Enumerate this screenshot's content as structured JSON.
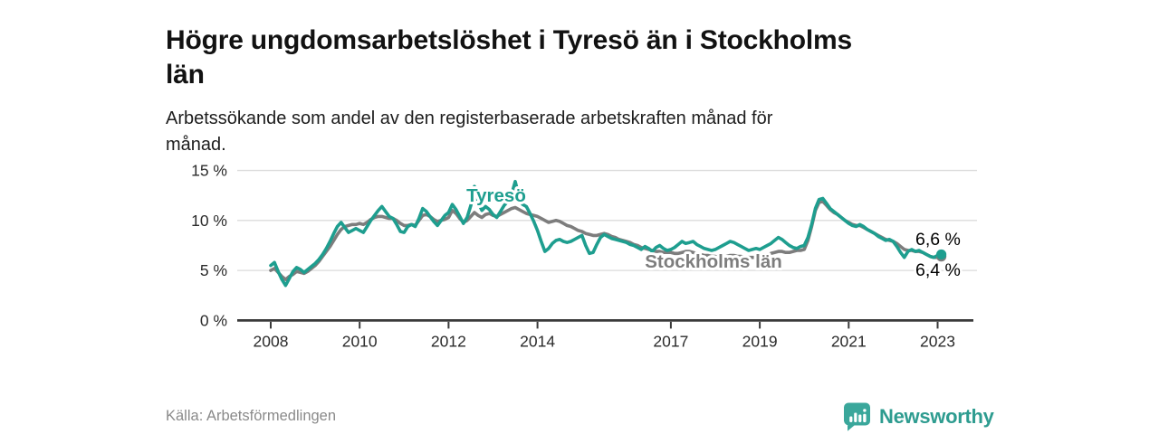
{
  "header": {
    "title_lines": [
      "Högre ungdomsarbetslöshet i Tyresö än i Stockholms",
      "län"
    ],
    "subtitle_lines": [
      "Arbetssökande som andel av den registerbaserade arbetskraften månad för",
      "månad."
    ]
  },
  "footer": {
    "source": "Källa: Arbetsförmedlingen",
    "brand_name": "Newsworthy",
    "brand_icon": "speech-bubble-bar-chart-icon",
    "brand_color": "#3AA79B"
  },
  "chart_data": {
    "type": "line",
    "title": "Högre ungdomsarbetslöshet i Tyresö än i Stockholms län",
    "subtitle": "Arbetssökande som andel av den registerbaserade arbetskraften månad för månad.",
    "x_unit": "month",
    "x_start": "2008-01",
    "x_end": "2023-02",
    "grid": "horizontal",
    "ylim": [
      0,
      15.5
    ],
    "y_ticks": [
      {
        "value": 0,
        "label": "0 %"
      },
      {
        "value": 5,
        "label": "5 %"
      },
      {
        "value": 10,
        "label": "10 %"
      },
      {
        "value": 15,
        "label": "15 %"
      }
    ],
    "x_ticks": [
      {
        "year": 2008,
        "label": "2008"
      },
      {
        "year": 2010,
        "label": "2010"
      },
      {
        "year": 2012,
        "label": "2012"
      },
      {
        "year": 2014,
        "label": "2014"
      },
      {
        "year": 2017,
        "label": "2017"
      },
      {
        "year": 2019,
        "label": "2019"
      },
      {
        "year": 2021,
        "label": "2021"
      },
      {
        "year": 2023,
        "label": "2023"
      }
    ],
    "series": [
      {
        "name": "Stockholms län",
        "color": "#7D7D7D",
        "end_label": "6,4 %",
        "end_marker": true,
        "values": [
          5.0,
          5.2,
          4.8,
          4.4,
          4.1,
          4.4,
          4.6,
          4.9,
          4.8,
          4.7,
          4.9,
          5.2,
          5.5,
          5.9,
          6.4,
          6.9,
          7.4,
          8.0,
          8.6,
          9.1,
          9.4,
          9.5,
          9.6,
          9.6,
          9.7,
          9.6,
          9.8,
          10.1,
          10.3,
          10.4,
          10.4,
          10.3,
          10.2,
          10.2,
          10.0,
          9.7,
          9.5,
          9.5,
          9.6,
          9.5,
          10.0,
          10.5,
          10.6,
          10.4,
          10.1,
          9.9,
          10.0,
          10.1,
          10.3,
          11.0,
          10.7,
          10.2,
          9.8,
          10.0,
          10.4,
          10.8,
          10.5,
          10.3,
          10.6,
          10.7,
          10.5,
          10.4,
          10.6,
          10.8,
          11.0,
          11.2,
          11.3,
          11.1,
          10.9,
          10.7,
          10.6,
          10.5,
          10.4,
          10.2,
          10.0,
          9.8,
          9.9,
          10.0,
          9.9,
          9.7,
          9.5,
          9.4,
          9.2,
          9.0,
          8.9,
          8.7,
          8.6,
          8.5,
          8.5,
          8.6,
          8.7,
          8.6,
          8.4,
          8.3,
          8.1,
          8.0,
          7.9,
          7.8,
          7.6,
          7.5,
          7.3,
          7.2,
          7.1,
          7.0,
          6.9,
          6.9,
          6.8,
          6.8,
          6.8,
          6.7,
          6.7,
          6.8,
          6.9,
          6.9,
          6.8,
          6.7,
          6.6,
          6.5,
          6.5,
          6.4,
          6.4,
          6.3,
          6.3,
          6.4,
          6.5,
          6.5,
          6.4,
          6.4,
          6.3,
          6.3,
          6.3,
          6.3,
          6.3,
          6.4,
          6.5,
          6.7,
          6.8,
          6.9,
          6.9,
          6.8,
          6.8,
          6.9,
          7.0,
          7.0,
          7.1,
          8.0,
          9.4,
          11.0,
          11.8,
          11.9,
          11.5,
          11.1,
          10.8,
          10.6,
          10.3,
          10.0,
          9.8,
          9.6,
          9.5,
          9.5,
          9.3,
          9.1,
          8.9,
          8.7,
          8.5,
          8.3,
          8.1,
          8.0,
          7.9,
          7.7,
          7.4,
          7.1,
          7.0,
          7.0,
          6.9,
          6.9,
          6.8,
          6.6,
          6.4,
          6.3,
          6.3,
          6.4
        ]
      },
      {
        "name": "Tyresö",
        "color": "#1E9E8F",
        "end_label": "6,6 %",
        "end_marker": true,
        "values": [
          5.5,
          5.8,
          4.9,
          4.1,
          3.5,
          4.2,
          4.9,
          5.3,
          5.1,
          4.8,
          5.1,
          5.4,
          5.7,
          6.1,
          6.6,
          7.2,
          7.9,
          8.7,
          9.4,
          9.8,
          9.3,
          8.8,
          9.0,
          9.2,
          9.0,
          8.8,
          9.4,
          10.0,
          10.5,
          11.0,
          11.4,
          10.9,
          10.4,
          10.2,
          9.6,
          8.9,
          8.8,
          9.4,
          9.6,
          9.4,
          10.2,
          11.2,
          10.9,
          10.4,
          9.9,
          9.5,
          10.0,
          10.5,
          10.8,
          11.6,
          11.1,
          10.4,
          9.7,
          10.3,
          11.5,
          13.4,
          11.8,
          11.0,
          11.4,
          11.1,
          10.6,
          10.3,
          10.9,
          11.5,
          11.9,
          12.6,
          13.9,
          12.4,
          11.6,
          11.4,
          10.7,
          9.9,
          9.0,
          7.9,
          6.9,
          7.2,
          7.7,
          8.0,
          8.1,
          7.9,
          7.8,
          7.9,
          8.1,
          8.3,
          8.5,
          7.5,
          6.7,
          6.8,
          7.6,
          8.3,
          8.6,
          8.4,
          8.2,
          8.1,
          8.0,
          7.9,
          7.8,
          7.6,
          7.5,
          7.3,
          7.1,
          7.4,
          7.2,
          6.9,
          7.3,
          7.5,
          7.2,
          7.0,
          7.1,
          7.3,
          7.6,
          7.9,
          7.7,
          7.8,
          7.9,
          7.6,
          7.4,
          7.2,
          7.1,
          7.0,
          7.1,
          7.3,
          7.5,
          7.7,
          7.9,
          7.8,
          7.6,
          7.4,
          7.2,
          7.0,
          7.1,
          7.2,
          7.1,
          7.3,
          7.5,
          7.7,
          8.0,
          8.3,
          8.1,
          7.8,
          7.5,
          7.3,
          7.2,
          7.4,
          7.5,
          8.3,
          9.6,
          11.2,
          12.1,
          12.2,
          11.7,
          11.2,
          10.9,
          10.6,
          10.3,
          10.0,
          9.7,
          9.5,
          9.4,
          9.6,
          9.4,
          9.1,
          8.9,
          8.7,
          8.4,
          8.2,
          8.0,
          8.1,
          7.9,
          7.4,
          6.8,
          6.3,
          6.9,
          7.1,
          6.9,
          7.0,
          6.8,
          6.6,
          6.4,
          6.3,
          6.5,
          6.6
        ]
      }
    ]
  }
}
